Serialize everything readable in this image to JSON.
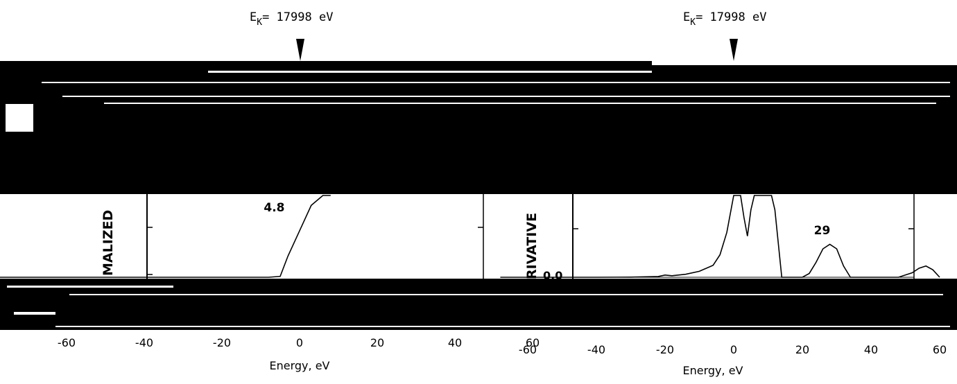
{
  "chart_data": [
    {
      "type": "line",
      "edge_label": {
        "prefix": "E",
        "subscript": "K",
        "text": "= 17998 eV"
      },
      "xlabel": "Energy, eV",
      "ylabel_visible": "MALIZED",
      "x_ticks": [
        "-60",
        "-40",
        "-20",
        "0",
        "20",
        "40",
        "60"
      ],
      "xlim": [
        -80,
        80
      ],
      "annotations": [
        {
          "text": "4.8",
          "x": -6
        }
      ],
      "series": [
        {
          "x": [
            -80,
            -60,
            -40,
            -20,
            -8,
            -5,
            -3,
            0,
            3,
            6,
            8
          ],
          "y": [
            0.0,
            0.0,
            0.0,
            0.0,
            0.0,
            0.01,
            0.25,
            0.55,
            0.85,
            1.1,
            1.3
          ]
        }
      ]
    },
    {
      "type": "line",
      "edge_label": {
        "prefix": "E",
        "subscript": "K",
        "text": "= 17998 eV"
      },
      "xlabel": "Energy, eV",
      "ylabel_visible": "RIVATIVE",
      "zero_label": "0.0",
      "x_ticks": [
        "-60",
        "-40",
        "-20",
        "0",
        "20",
        "40",
        "60"
      ],
      "xlim": [
        -80,
        80
      ],
      "annotations": [
        {
          "text": "29",
          "x": 27
        }
      ],
      "series": [
        {
          "x": [
            -68,
            -40,
            -30,
            -22,
            -20,
            -18,
            -14,
            -10,
            -6,
            -4,
            -2,
            0,
            2,
            3,
            4,
            5,
            6,
            7,
            8,
            9,
            10,
            11,
            12,
            14,
            18,
            20,
            22,
            24,
            26,
            28,
            30,
            32,
            34,
            44,
            48,
            52,
            54,
            56,
            58,
            60
          ],
          "y": [
            0.0,
            0.0,
            0.002,
            0.01,
            0.03,
            0.02,
            0.04,
            0.08,
            0.16,
            0.3,
            0.6,
            1.3,
            1.3,
            0.8,
            0.55,
            0.9,
            1.3,
            1.3,
            1.3,
            1.3,
            1.3,
            1.3,
            0.9,
            0.0,
            0.0,
            0.0,
            0.05,
            0.2,
            0.38,
            0.44,
            0.38,
            0.15,
            0.0,
            0.0,
            0.0,
            0.06,
            0.12,
            0.15,
            0.1,
            0.0
          ]
        }
      ]
    }
  ]
}
